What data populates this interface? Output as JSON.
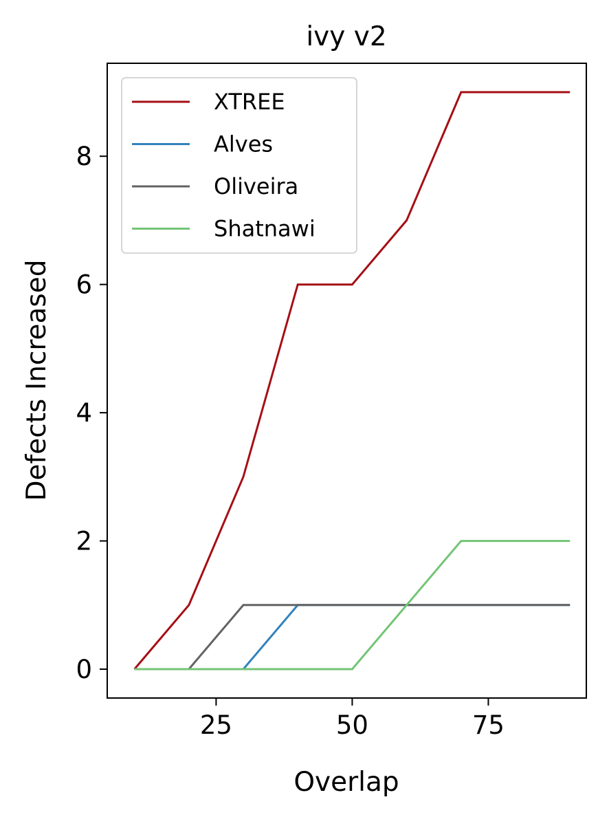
{
  "chart_data": {
    "type": "line",
    "title": "ivy v2",
    "xlabel": "Overlap",
    "ylabel": "Defects Increased",
    "xlim": [
      5,
      93
    ],
    "ylim": [
      -0.45,
      9.45
    ],
    "xticks": [
      25,
      50,
      75
    ],
    "yticks": [
      0,
      2,
      4,
      6,
      8
    ],
    "x": [
      10,
      20,
      30,
      40,
      50,
      60,
      70,
      80,
      90
    ],
    "series": [
      {
        "name": "XTREE",
        "color": "#a50f15",
        "values": [
          0,
          1,
          3,
          6,
          6,
          7,
          9,
          9,
          9
        ]
      },
      {
        "name": "Alves",
        "color": "#3182bd",
        "values": [
          0,
          0,
          0,
          1,
          1,
          1,
          1,
          1,
          1
        ]
      },
      {
        "name": "Oliveira",
        "color": "#636363",
        "values": [
          0,
          0,
          1,
          1,
          1,
          1,
          1,
          1,
          1
        ]
      },
      {
        "name": "Shatnawi",
        "color": "#74c476",
        "values": [
          0,
          0,
          0,
          0,
          0,
          1,
          2,
          2,
          2
        ]
      }
    ],
    "grid": false,
    "legend_position": "upper-left"
  }
}
